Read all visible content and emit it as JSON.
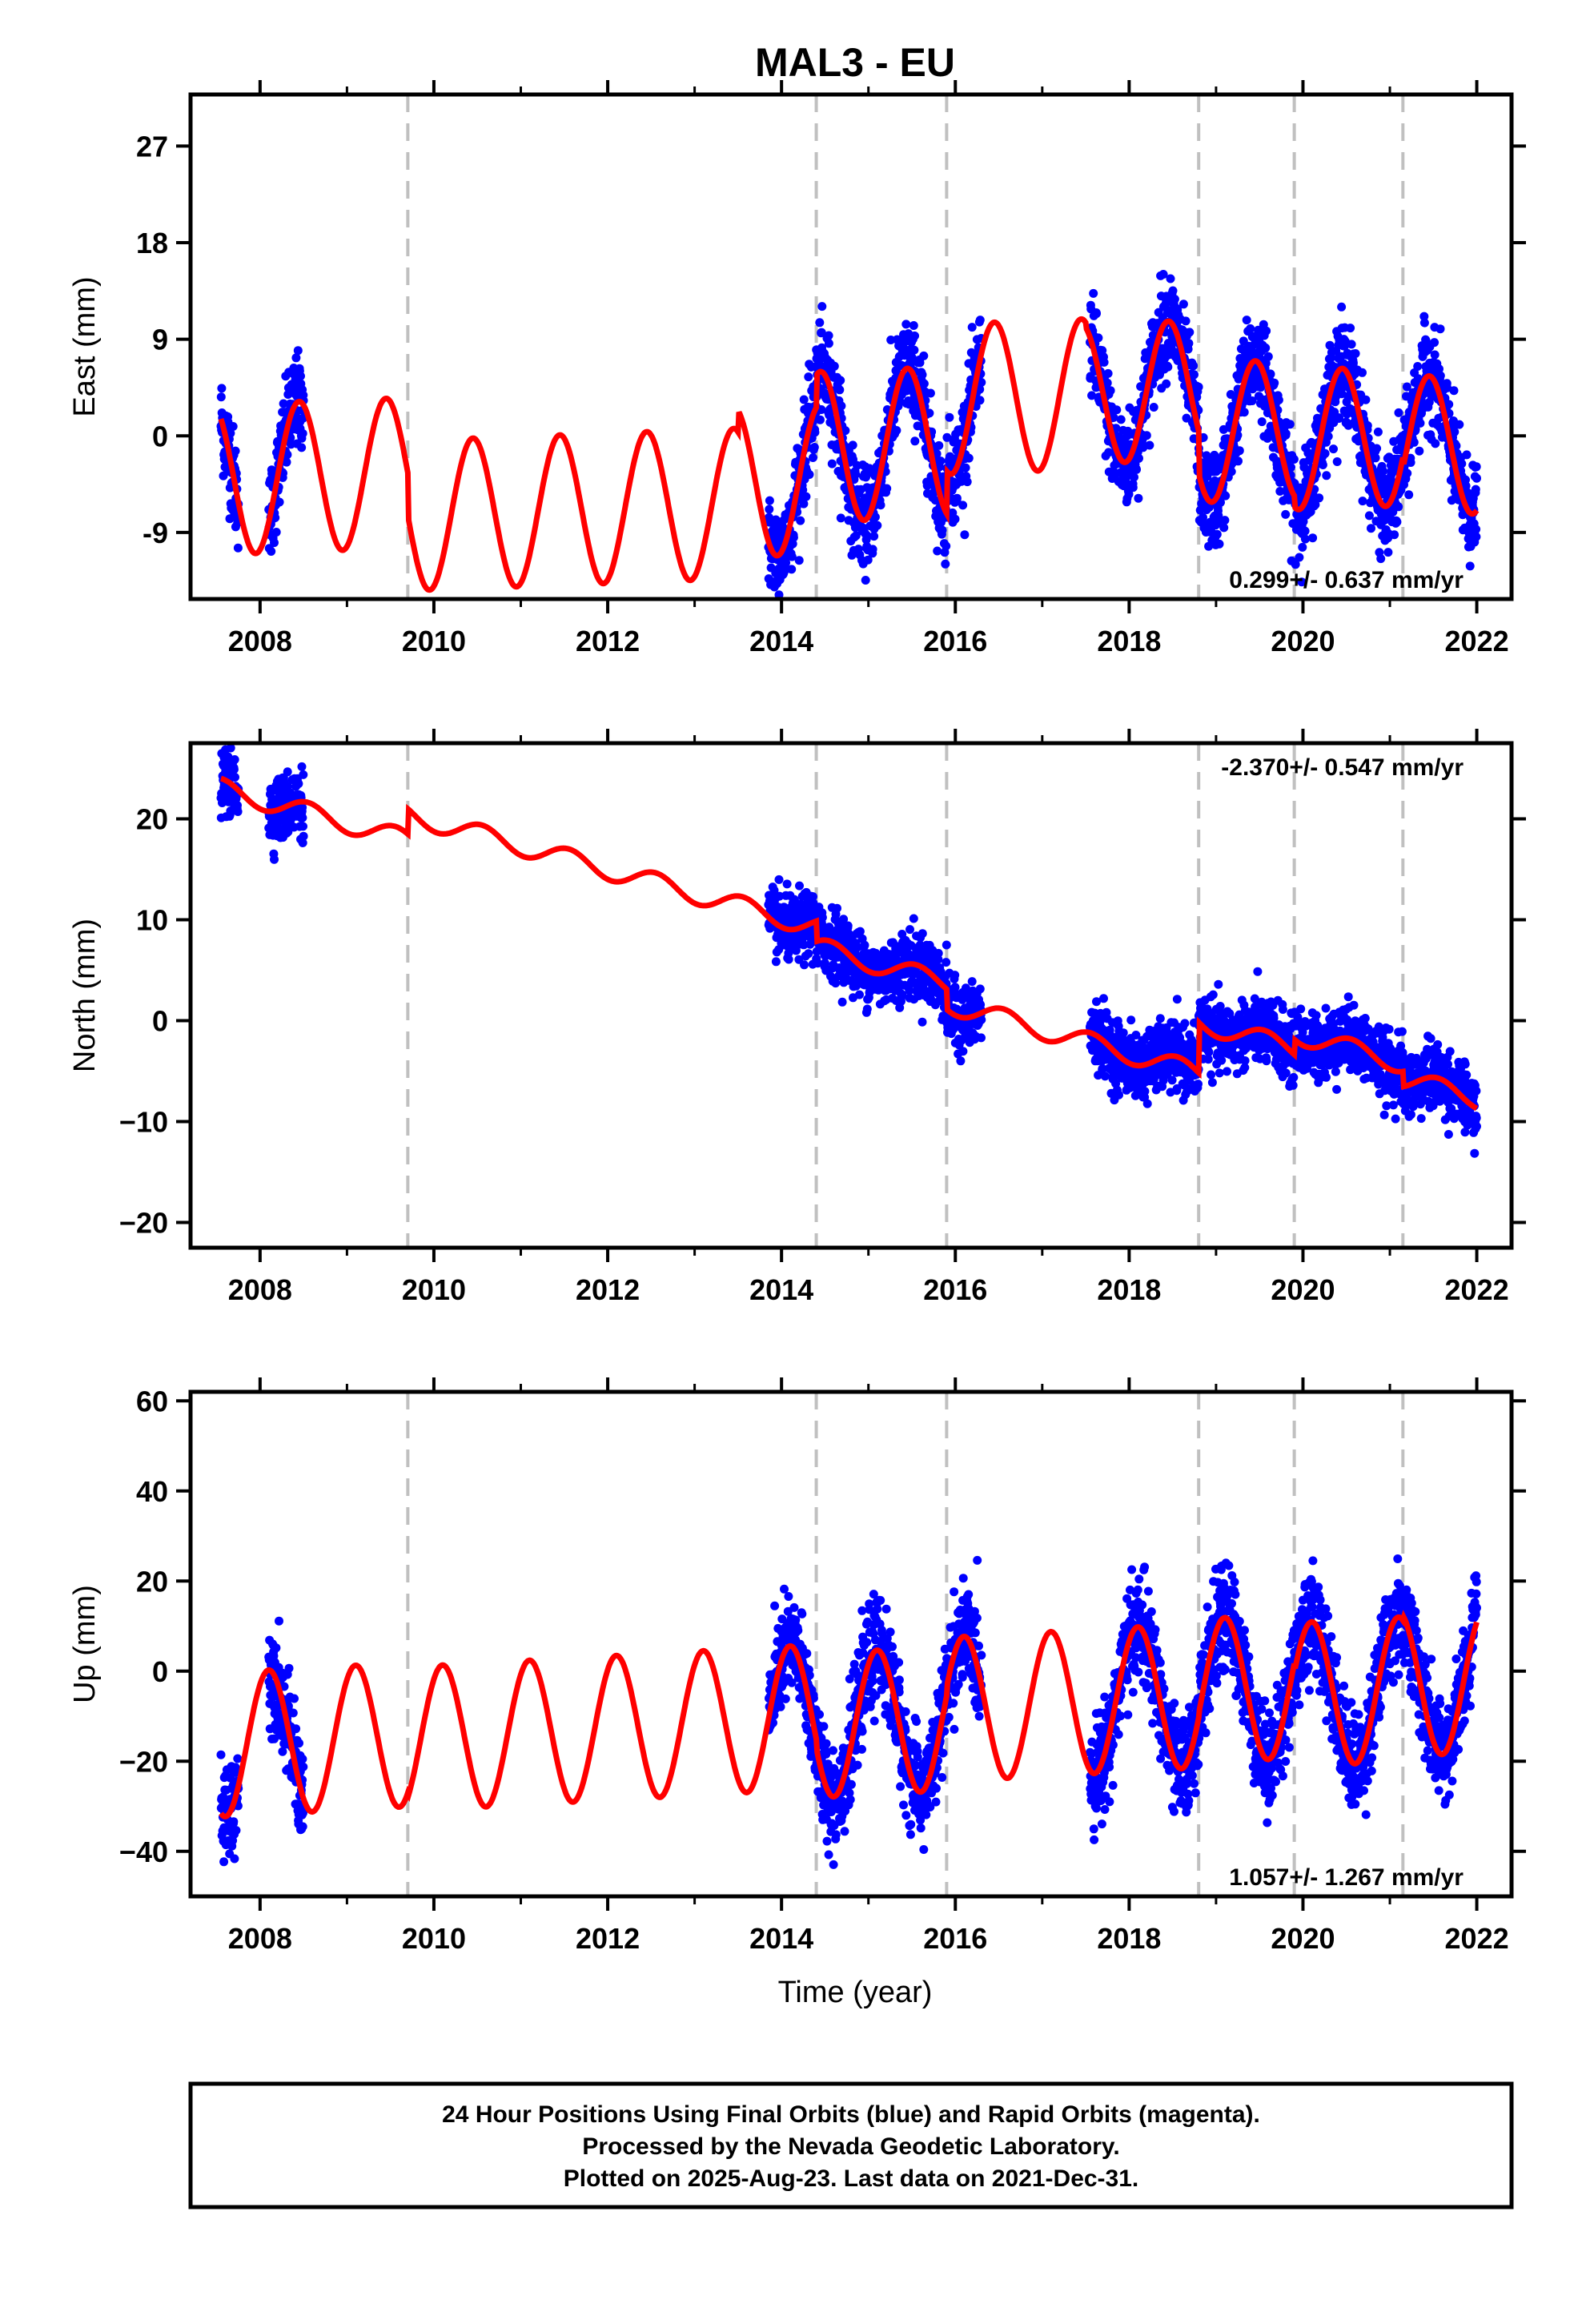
{
  "title": "MAL3 - EU",
  "chart_data": [
    {
      "type": "scatter",
      "panel": "east",
      "ylabel": "East (mm)",
      "xlabel": "",
      "xlim": [
        2007.2,
        2022.4
      ],
      "ylim": [
        -15.2,
        31.8
      ],
      "xticks": [
        2008,
        2010,
        2012,
        2014,
        2016,
        2018,
        2020,
        2022
      ],
      "xtick_labels": [
        "2008",
        "2010",
        "2012",
        "2014",
        "2016",
        "2018",
        "2020",
        "2022"
      ],
      "yticks": [
        -9,
        0,
        9,
        18,
        27
      ],
      "ytick_labels": [
        "-9",
        "0",
        "9",
        "18",
        "27"
      ],
      "rate_text": "0.299+/- 0.637 mm/yr",
      "rate_position": "bottom-right",
      "steps": [
        2009.7,
        2014.4,
        2015.9,
        2018.8,
        2019.9,
        2021.15
      ],
      "series": [
        {
          "kind": "points",
          "color": "#0000ff",
          "segments": [
            [
              2007.55,
              2007.75
            ],
            [
              2008.1,
              2008.5
            ],
            [
              2013.85,
              2016.3
            ],
            [
              2017.55,
              2022.0
            ]
          ]
        },
        {
          "kind": "model",
          "color": "#ff0000",
          "description_values": {
            "annual_amplitude_mm": 7,
            "rate_mm_yr": 0.299
          }
        }
      ],
      "grid": false
    },
    {
      "type": "scatter",
      "panel": "north",
      "ylabel": "North (mm)",
      "xlabel": "",
      "xlim": [
        2007.2,
        2022.4
      ],
      "ylim": [
        -22.5,
        27.5
      ],
      "xticks": [
        2008,
        2010,
        2012,
        2014,
        2016,
        2018,
        2020,
        2022
      ],
      "xtick_labels": [
        "2008",
        "2010",
        "2012",
        "2014",
        "2016",
        "2018",
        "2020",
        "2022"
      ],
      "yticks": [
        -20,
        -10,
        0,
        10,
        20
      ],
      "ytick_labels": [
        "−20",
        "−10",
        "0",
        "10",
        "20"
      ],
      "rate_text": "-2.370+/- 0.547 mm/yr",
      "rate_position": "top-right",
      "steps": [
        2009.7,
        2014.4,
        2015.9,
        2018.8,
        2019.9,
        2021.15
      ],
      "series": [
        {
          "kind": "points",
          "color": "#0000ff",
          "segments": [
            [
              2007.55,
              2007.75
            ],
            [
              2008.1,
              2008.5
            ],
            [
              2013.85,
              2016.3
            ],
            [
              2017.55,
              2022.0
            ]
          ]
        },
        {
          "kind": "model",
          "color": "#ff0000",
          "description_values": {
            "start_mm": 23,
            "end_mm": -7,
            "rate_mm_yr": -2.37
          }
        }
      ],
      "grid": false
    },
    {
      "type": "scatter",
      "panel": "up",
      "ylabel": "Up (mm)",
      "xlabel": "Time (year)",
      "xlim": [
        2007.2,
        2022.4
      ],
      "ylim": [
        -50,
        62
      ],
      "xticks": [
        2008,
        2010,
        2012,
        2014,
        2016,
        2018,
        2020,
        2022
      ],
      "xtick_labels": [
        "2008",
        "2010",
        "2012",
        "2014",
        "2016",
        "2018",
        "2020",
        "2022"
      ],
      "yticks": [
        -40,
        -20,
        0,
        20,
        40,
        60
      ],
      "ytick_labels": [
        "−40",
        "−20",
        "0",
        "20",
        "40",
        "60"
      ],
      "rate_text": "1.057+/- 1.267 mm/yr",
      "rate_position": "bottom-right",
      "steps": [
        2009.7,
        2014.4,
        2015.9,
        2018.8,
        2019.9,
        2021.15
      ],
      "series": [
        {
          "kind": "points",
          "color": "#0000ff",
          "segments": [
            [
              2007.55,
              2007.75
            ],
            [
              2008.1,
              2008.5
            ],
            [
              2013.85,
              2016.3
            ],
            [
              2017.55,
              2022.0
            ]
          ]
        },
        {
          "kind": "model",
          "color": "#ff0000",
          "description_values": {
            "annual_amplitude_mm": 16,
            "rate_mm_yr": 1.057
          }
        }
      ],
      "grid": false
    }
  ],
  "caption": {
    "line1": "24 Hour Positions Using Final Orbits (blue) and Rapid Orbits (magenta).",
    "line2": "Processed by the Nevada Geodetic Laboratory.",
    "line3": "Plotted on 2025-Aug-23. Last data on 2021-Dec-31."
  },
  "colors": {
    "final_orbits": "#0000ff",
    "model": "#ff0000",
    "steps": "#c0c0c0",
    "frame": "#000000"
  }
}
